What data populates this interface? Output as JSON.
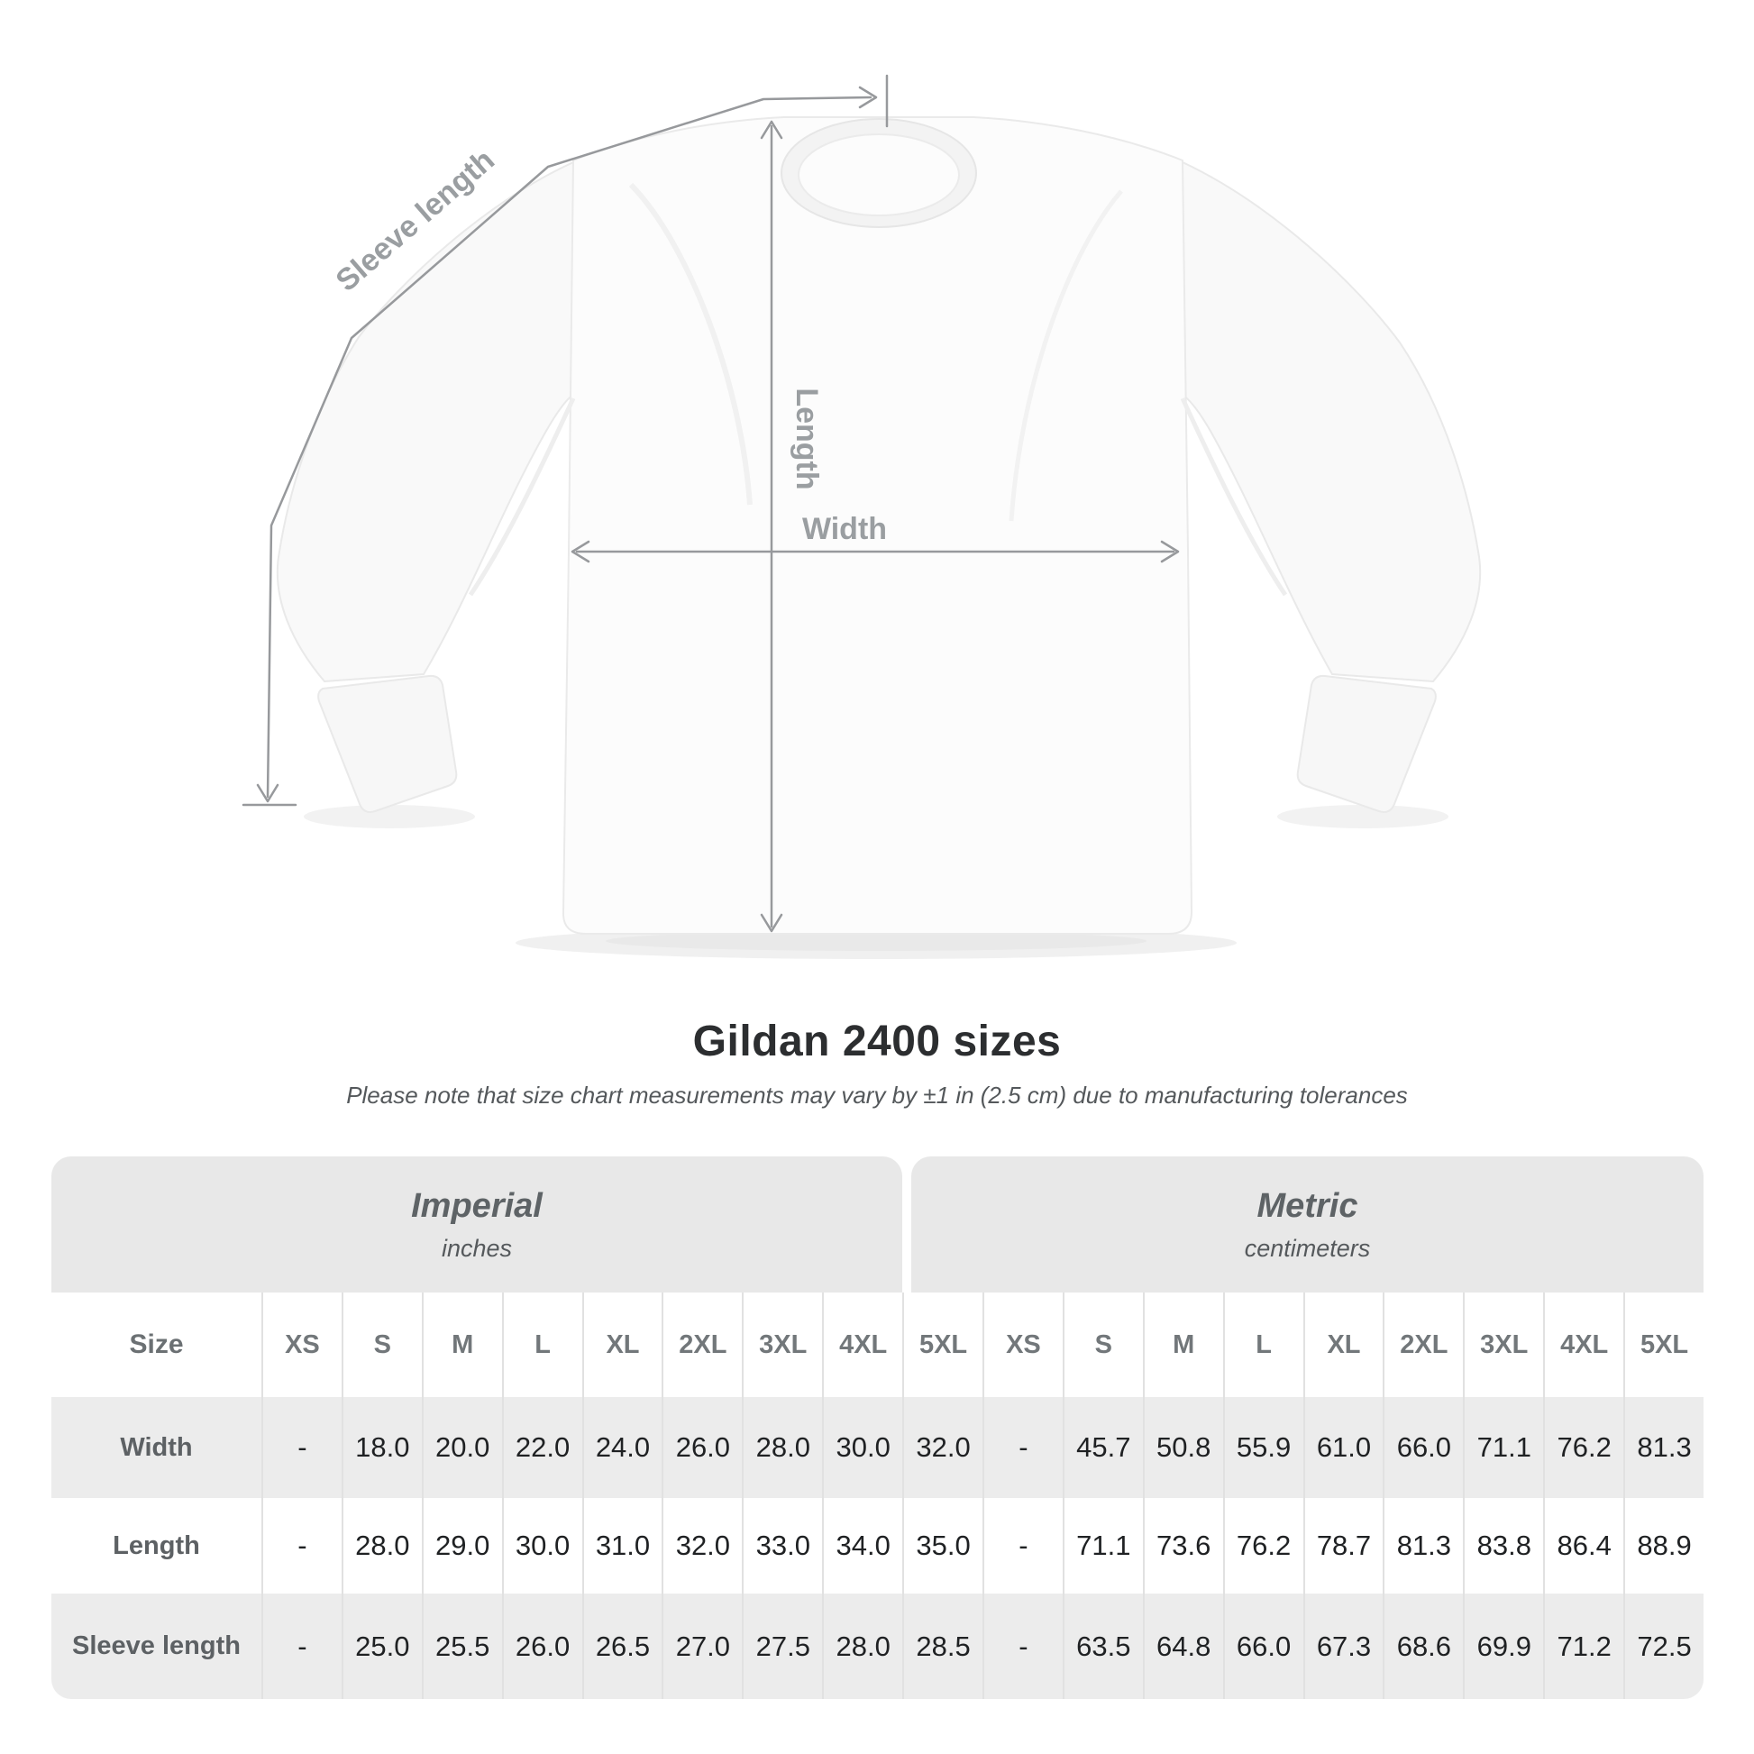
{
  "diagram": {
    "labels": {
      "sleeve_length": "Sleeve length",
      "length": "Length",
      "width": "Width"
    },
    "line_color": "#97999c",
    "label_color": "#9a9ea1"
  },
  "header": {
    "title": "Gildan 2400 sizes",
    "subtitle": "Please note that size chart measurements may vary by ±1 in (2.5 cm) due to manufacturing tolerances"
  },
  "table": {
    "groups": [
      {
        "label": "Imperial",
        "unit": "inches"
      },
      {
        "label": "Metric",
        "unit": "centimeters"
      }
    ],
    "size_header": "Size",
    "imperial_sizes": [
      "XS",
      "S",
      "M",
      "L",
      "XL",
      "2XL",
      "3XL",
      "4XL",
      "5XL"
    ],
    "metric_sizes": [
      "XS",
      "S",
      "M",
      "L",
      "XL",
      "2XL",
      "3XL",
      "4XL",
      "5XL"
    ],
    "rows": [
      {
        "label": "Width",
        "imperial": [
          "-",
          "18.0",
          "20.0",
          "22.0",
          "24.0",
          "26.0",
          "28.0",
          "30.0",
          "32.0"
        ],
        "metric": [
          "-",
          "45.7",
          "50.8",
          "55.9",
          "61.0",
          "66.0",
          "71.1",
          "76.2",
          "81.3"
        ]
      },
      {
        "label": "Length",
        "imperial": [
          "-",
          "28.0",
          "29.0",
          "30.0",
          "31.0",
          "32.0",
          "33.0",
          "34.0",
          "35.0"
        ],
        "metric": [
          "-",
          "71.1",
          "73.6",
          "76.2",
          "78.7",
          "81.3",
          "83.8",
          "86.4",
          "88.9"
        ]
      },
      {
        "label": "Sleeve length",
        "imperial": [
          "-",
          "25.0",
          "25.5",
          "26.0",
          "26.5",
          "27.0",
          "27.5",
          "28.0",
          "28.5"
        ],
        "metric": [
          "-",
          "63.5",
          "64.8",
          "66.0",
          "67.3",
          "68.6",
          "69.9",
          "71.2",
          "72.5"
        ]
      }
    ]
  },
  "chart_data": {
    "type": "table",
    "title": "Gildan 2400 sizes",
    "sizes": [
      "XS",
      "S",
      "M",
      "L",
      "XL",
      "2XL",
      "3XL",
      "4XL",
      "5XL"
    ],
    "imperial_inches": {
      "Width": [
        null,
        18.0,
        20.0,
        22.0,
        24.0,
        26.0,
        28.0,
        30.0,
        32.0
      ],
      "Length": [
        null,
        28.0,
        29.0,
        30.0,
        31.0,
        32.0,
        33.0,
        34.0,
        35.0
      ],
      "Sleeve length": [
        null,
        25.0,
        25.5,
        26.0,
        26.5,
        27.0,
        27.5,
        28.0,
        28.5
      ]
    },
    "metric_centimeters": {
      "Width": [
        null,
        45.7,
        50.8,
        55.9,
        61.0,
        66.0,
        71.1,
        76.2,
        81.3
      ],
      "Length": [
        null,
        71.1,
        73.6,
        76.2,
        78.7,
        81.3,
        83.8,
        86.4,
        88.9
      ],
      "Sleeve length": [
        null,
        63.5,
        64.8,
        66.0,
        67.3,
        68.6,
        69.9,
        71.2,
        72.5
      ]
    },
    "colors": {
      "band": "#e8e8e8",
      "row_alt": "#ececec",
      "value_text": "#1f2123",
      "muted_text": "#6b7073"
    }
  }
}
